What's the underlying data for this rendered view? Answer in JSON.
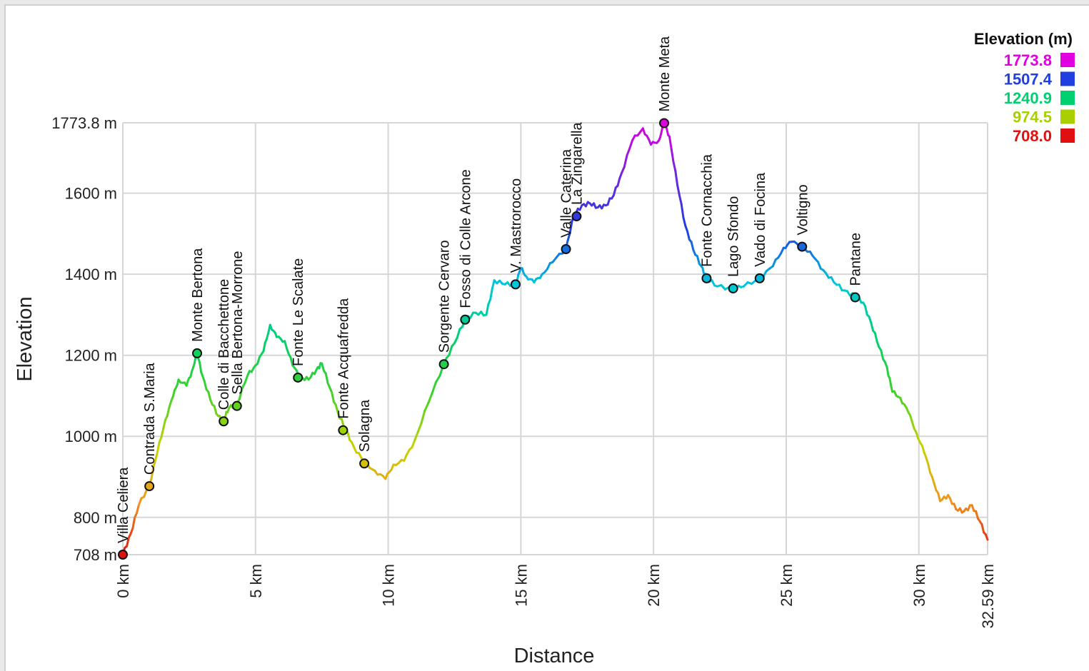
{
  "chart_data": {
    "type": "line",
    "xlabel": "Distance",
    "ylabel": "Elevation",
    "xlim": [
      0,
      32.59
    ],
    "ylim": [
      708,
      1773.8
    ],
    "grid": true,
    "x_ticks": [
      0,
      5,
      10,
      15,
      20,
      25,
      30,
      32.59
    ],
    "x_tick_labels": [
      "0 km",
      "5 km",
      "10 km",
      "15 km",
      "20 km",
      "25 km",
      "30 km",
      "32.59 km"
    ],
    "y_ticks": [
      708,
      800,
      1000,
      1200,
      1400,
      1600,
      1773.8
    ],
    "y_tick_labels": [
      "708 m",
      "800 m",
      "1000 m",
      "1200 m",
      "1400 m",
      "1600 m",
      "1773.8 m"
    ],
    "legend": {
      "title": "Elevation (m)",
      "position": "top-right",
      "entries": [
        {
          "label": "1773.8",
          "color": "#e000e0"
        },
        {
          "label": "1507.4",
          "color": "#1f3fe0"
        },
        {
          "label": "1240.9",
          "color": "#00d070"
        },
        {
          "label": "974.5",
          "color": "#a8d000"
        },
        {
          "label": "708.0",
          "color": "#e01010"
        }
      ]
    },
    "series": [
      {
        "x": [
          0,
          0.3,
          0.6,
          1.0,
          1.3,
          1.6,
          1.9,
          2.1,
          2.4,
          2.6,
          2.8,
          3.0,
          3.3,
          3.6,
          3.8,
          4.0,
          4.3,
          4.7,
          5.0,
          5.3,
          5.55,
          5.8,
          6.1,
          6.4,
          6.7,
          7.0,
          7.3,
          7.5,
          7.8,
          8.1,
          8.4,
          8.7,
          9.1,
          9.5,
          9.9,
          10.2,
          10.6,
          11.0,
          11.5,
          12.1,
          12.5,
          12.9,
          13.3,
          13.7,
          14.0,
          14.4,
          14.8,
          15.0,
          15.2,
          15.5,
          15.8,
          16.2,
          16.7,
          17.0,
          17.3,
          17.6,
          17.9,
          18.2,
          18.5,
          18.8,
          19.2,
          19.6,
          19.9,
          20.2,
          20.4,
          20.6,
          20.9,
          21.2,
          21.5,
          21.8,
          22.0,
          22.4,
          23.0,
          23.4,
          24.0,
          24.5,
          24.9,
          25.2,
          25.6,
          26.0,
          26.4,
          26.8,
          27.2,
          27.6,
          27.9,
          28.2,
          28.5,
          28.8,
          29.0,
          29.3,
          29.6,
          29.9,
          30.2,
          30.5,
          30.8,
          31.1,
          31.4,
          31.7,
          32.0,
          32.3,
          32.59
        ],
        "y": [
          708,
          760,
          830,
          880,
          960,
          1040,
          1100,
          1140,
          1125,
          1160,
          1205,
          1150,
          1090,
          1050,
          1040,
          1070,
          1080,
          1150,
          1175,
          1210,
          1275,
          1245,
          1235,
          1175,
          1145,
          1140,
          1165,
          1180,
          1120,
          1060,
          1015,
          975,
          935,
          915,
          895,
          930,
          940,
          990,
          1080,
          1180,
          1230,
          1290,
          1305,
          1300,
          1385,
          1375,
          1375,
          1415,
          1395,
          1380,
          1400,
          1430,
          1465,
          1545,
          1570,
          1575,
          1565,
          1570,
          1595,
          1650,
          1730,
          1760,
          1720,
          1730,
          1773.8,
          1740,
          1620,
          1520,
          1460,
          1420,
          1390,
          1370,
          1365,
          1370,
          1390,
          1420,
          1465,
          1480,
          1470,
          1445,
          1410,
          1380,
          1360,
          1345,
          1330,
          1280,
          1220,
          1170,
          1110,
          1095,
          1060,
          1010,
          960,
          900,
          840,
          855,
          820,
          815,
          830,
          790,
          745
        ]
      }
    ],
    "waypoints": [
      {
        "name": "Villa Celiera",
        "x": 0.0,
        "y": 708
      },
      {
        "name": "Contrada S.Maria",
        "x": 1.0,
        "y": 877
      },
      {
        "name": "Monte Bertona",
        "x": 2.8,
        "y": 1205
      },
      {
        "name": "Colle di Bacchettone",
        "x": 3.8,
        "y": 1037
      },
      {
        "name": "Sella Bertona-Morrone",
        "x": 4.3,
        "y": 1075
      },
      {
        "name": "Fonte Le Scalate",
        "x": 6.6,
        "y": 1145
      },
      {
        "name": "Fonte Acquafredda",
        "x": 8.3,
        "y": 1015
      },
      {
        "name": "Solagna",
        "x": 9.1,
        "y": 933
      },
      {
        "name": "Sorgente Cervaro",
        "x": 12.1,
        "y": 1178
      },
      {
        "name": "Fosso di Colle Arcone",
        "x": 12.9,
        "y": 1288
      },
      {
        "name": "V. Mastrorocco",
        "x": 14.8,
        "y": 1375
      },
      {
        "name": "Valle Caterina",
        "x": 16.7,
        "y": 1462
      },
      {
        "name": "La Zingarella",
        "x": 17.1,
        "y": 1543
      },
      {
        "name": "Monte Meta",
        "x": 20.4,
        "y": 1773
      },
      {
        "name": "Fonte Cornacchia",
        "x": 22.0,
        "y": 1390
      },
      {
        "name": "Lago Sfondo",
        "x": 23.0,
        "y": 1365
      },
      {
        "name": "Vado di Focina",
        "x": 24.0,
        "y": 1390
      },
      {
        "name": "Voltigno",
        "x": 25.6,
        "y": 1468
      },
      {
        "name": "Pantane",
        "x": 27.6,
        "y": 1343
      }
    ]
  }
}
